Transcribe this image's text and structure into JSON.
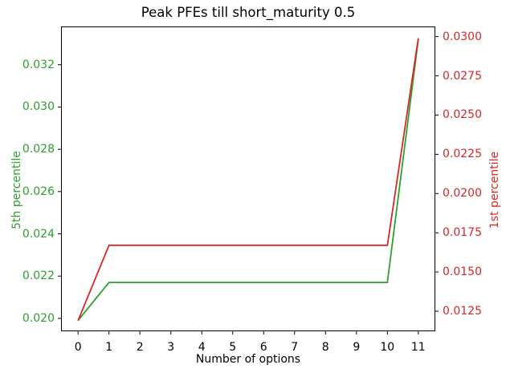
{
  "figure": {
    "background": "#ffffff",
    "frame_color": "#000000",
    "tick_color": "#000000"
  },
  "chart_data": {
    "type": "line",
    "title": "Peak PFEs till short_maturity 0.5",
    "xlabel": "Number of options",
    "ylabel_left": "5th percentile",
    "ylabel_right": "1st percentile",
    "grid": false,
    "legend_position": "none",
    "x": [
      0,
      1,
      2,
      3,
      4,
      5,
      6,
      7,
      8,
      9,
      10,
      11
    ],
    "series": [
      {
        "name": "5th percentile",
        "axis": "left",
        "color": "#2ca02c",
        "values": [
          0.0199,
          0.0217,
          0.0217,
          0.0217,
          0.0217,
          0.0217,
          0.0217,
          0.0217,
          0.0217,
          0.0217,
          0.0217,
          0.0332
        ]
      },
      {
        "name": "1st percentile",
        "axis": "right",
        "color": "#d62728",
        "values": [
          0.0119,
          0.0167,
          0.0167,
          0.0167,
          0.0167,
          0.0167,
          0.0167,
          0.0167,
          0.0167,
          0.0167,
          0.0167,
          0.0299
        ]
      }
    ],
    "x_ticks": {
      "values": [
        0,
        1,
        2,
        3,
        4,
        5,
        6,
        7,
        8,
        9,
        10,
        11
      ],
      "labels": [
        "0",
        "1",
        "2",
        "3",
        "4",
        "5",
        "6",
        "7",
        "8",
        "9",
        "10",
        "11"
      ]
    },
    "y_left_ticks": {
      "values": [
        0.02,
        0.022,
        0.024,
        0.026,
        0.028,
        0.03,
        0.032
      ],
      "labels": [
        "0.020",
        "0.022",
        "0.024",
        "0.026",
        "0.028",
        "0.030",
        "0.032"
      ]
    },
    "y_right_ticks": {
      "values": [
        0.0125,
        0.015,
        0.0175,
        0.02,
        0.0225,
        0.025,
        0.0275,
        0.03
      ],
      "labels": [
        "0.0125",
        "0.0150",
        "0.0175",
        "0.0200",
        "0.0225",
        "0.0250",
        "0.0275",
        "0.0300"
      ]
    },
    "xlim": [
      -0.55,
      11.55
    ],
    "ylim_left": [
      0.01939,
      0.03381
    ],
    "ylim_right": [
      0.01122,
      0.03065
    ]
  }
}
